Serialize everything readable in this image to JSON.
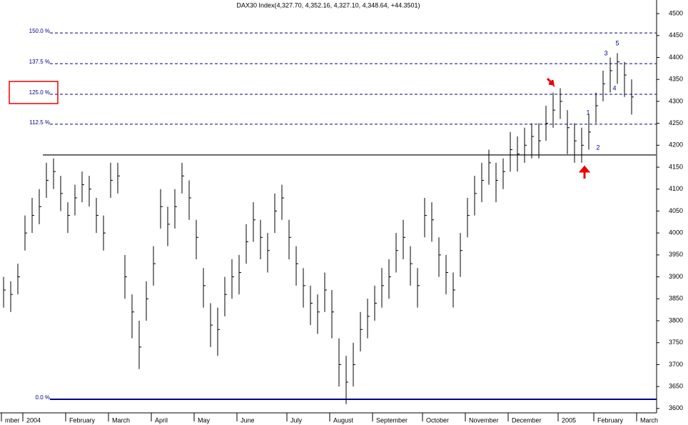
{
  "chart_data": {
    "type": "ohlc",
    "title": "DAX30 Index(4,327.70, 4,352.16, 4,327.10, 4,348.64, +44.3501)",
    "categories": [
      "mber",
      null,
      null,
      "2004",
      null,
      null,
      null,
      null,
      null,
      "February",
      null,
      null,
      null,
      null,
      null,
      "March",
      null,
      null,
      null,
      null,
      null,
      "April",
      null,
      null,
      null,
      null,
      null,
      "May",
      null,
      null,
      null,
      null,
      null,
      "June",
      null,
      null,
      null,
      null,
      null,
      null,
      "July",
      null,
      null,
      null,
      null,
      null,
      "August",
      null,
      null,
      null,
      null,
      null,
      "September",
      null,
      null,
      null,
      null,
      null,
      null,
      "October",
      null,
      null,
      null,
      null,
      null,
      "November",
      null,
      null,
      null,
      null,
      null,
      "December",
      null,
      null,
      null,
      null,
      null,
      null,
      "2005",
      null,
      null,
      null,
      null,
      "February",
      null,
      null,
      null,
      null,
      null,
      "March",
      null
    ],
    "series": [
      {
        "name": "high",
        "values": [
          3900,
          3890,
          3930,
          4040,
          4080,
          4100,
          4160,
          4170,
          4130,
          4070,
          4110,
          4140,
          4130,
          4080,
          4040,
          4160,
          4160,
          3950,
          3860,
          3800,
          3890,
          3970,
          4100,
          4060,
          4100,
          4160,
          4120,
          4030,
          3920,
          3840,
          3830,
          3900,
          3940,
          3950,
          4020,
          4070,
          4030,
          4000,
          4090,
          4110,
          4030,
          3970,
          3920,
          3880,
          3860,
          3910,
          3870,
          3760,
          3720,
          3750,
          3820,
          3850,
          3880,
          3920,
          3940,
          4000,
          4030,
          3970,
          3920,
          4080,
          4070,
          3990,
          3950,
          3910,
          4000,
          4080,
          4130,
          4160,
          4190,
          4160,
          4170,
          4230,
          4220,
          4240,
          4250,
          4250,
          4290,
          4320,
          4330,
          4280,
          4250,
          4240,
          4270,
          4320,
          4370,
          4400,
          4410,
          4390,
          4350,
          null,
          null
        ]
      },
      {
        "name": "low",
        "values": [
          3830,
          3820,
          3860,
          3960,
          4000,
          4020,
          4080,
          4100,
          4050,
          4000,
          4040,
          4070,
          4060,
          4000,
          3960,
          4080,
          4090,
          3850,
          3760,
          3690,
          3800,
          3880,
          4010,
          3970,
          4010,
          4090,
          4030,
          3940,
          3830,
          3740,
          3720,
          3810,
          3850,
          3860,
          3930,
          3980,
          3940,
          3910,
          4000,
          4030,
          3940,
          3880,
          3830,
          3790,
          3770,
          3820,
          3760,
          3650,
          3610,
          3650,
          3730,
          3760,
          3800,
          3830,
          3850,
          3910,
          3940,
          3880,
          3830,
          3990,
          3980,
          3900,
          3860,
          3830,
          3900,
          3990,
          4040,
          4070,
          4110,
          4070,
          4100,
          4140,
          4140,
          4160,
          4170,
          4170,
          4210,
          4240,
          4260,
          4180,
          4160,
          4160,
          4190,
          4250,
          4300,
          4320,
          4340,
          4310,
          4270,
          null,
          null
        ]
      },
      {
        "name": "close",
        "values": [
          3870,
          3860,
          3900,
          4000,
          4040,
          4060,
          4120,
          4140,
          4090,
          4040,
          4080,
          4110,
          4100,
          4040,
          4000,
          4120,
          4130,
          3900,
          3820,
          3740,
          3850,
          3930,
          4060,
          4020,
          4060,
          4130,
          4080,
          3990,
          3880,
          3790,
          3780,
          3860,
          3900,
          3910,
          3980,
          4030,
          3990,
          3960,
          4050,
          4080,
          3990,
          3930,
          3880,
          3840,
          3820,
          3870,
          3820,
          3700,
          3660,
          3700,
          3780,
          3810,
          3840,
          3880,
          3900,
          3960,
          3990,
          3930,
          3880,
          4040,
          4030,
          3950,
          3910,
          3870,
          3960,
          4040,
          4090,
          4120,
          4160,
          4120,
          4140,
          4190,
          4180,
          4200,
          4220,
          4210,
          4250,
          4280,
          4300,
          4240,
          4210,
          4200,
          4230,
          4290,
          4340,
          4370,
          4390,
          4360,
          4310,
          null,
          null
        ]
      }
    ],
    "ylim": [
      3590,
      4531
    ],
    "yticks": [
      3600,
      3650,
      3700,
      3750,
      3800,
      3850,
      3900,
      3950,
      4000,
      4050,
      4100,
      4150,
      4200,
      4250,
      4300,
      4350,
      4400,
      4450,
      4500
    ],
    "levels": [
      {
        "label": "150.0 %",
        "value": 4456
      },
      {
        "label": "137.5 %",
        "value": 4386
      },
      {
        "label": "125.0 %",
        "value": 4316
      },
      {
        "label": "112.5 %",
        "value": 4248
      },
      {
        "label": "0.0 %",
        "value": 3621
      }
    ],
    "support": 4178,
    "annotations": [
      "1",
      "2",
      "3",
      "4",
      "5"
    ]
  }
}
